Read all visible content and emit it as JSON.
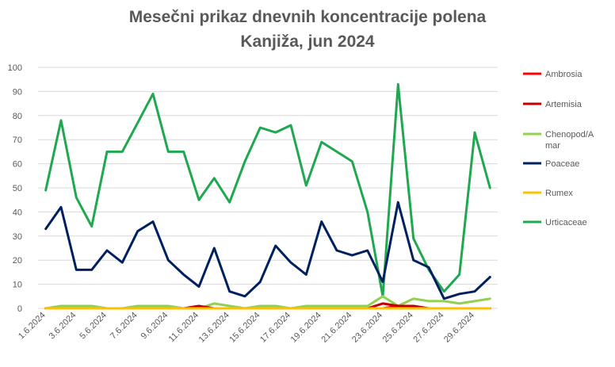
{
  "chart_data": {
    "type": "line",
    "title": "Mesečni prikaz dnevnih koncentracije polena",
    "subtitle": "Kanjiža, jun 2024",
    "xlabel": "",
    "ylabel": "",
    "ylim": [
      0,
      100
    ],
    "yticks": [
      0,
      10,
      20,
      30,
      40,
      50,
      60,
      70,
      80,
      90,
      100
    ],
    "grid": true,
    "legend_position": "right",
    "categories": [
      "1.6.2024",
      "2.6.2024",
      "3.6.2024",
      "4.6.2024",
      "5.6.2024",
      "6.6.2024",
      "7.6.2024",
      "8.6.2024",
      "9.6.2024",
      "10.6.2024",
      "11.6.2024",
      "12.6.2024",
      "13.6.2024",
      "14.6.2024",
      "15.6.2024",
      "16.6.2024",
      "17.6.2024",
      "18.6.2024",
      "19.6.2024",
      "20.6.2024",
      "21.6.2024",
      "22.6.2024",
      "23.6.2024",
      "24.6.2024",
      "25.6.2024",
      "26.6.2024",
      "27.6.2024",
      "28.6.2024",
      "29.6.2024",
      "30.6.2024"
    ],
    "xtick_labels": [
      "1.6.2024",
      "3.6.2024",
      "5.6.2024",
      "7.6.2024",
      "9.6.2024",
      "11.6.2024",
      "13.6.2024",
      "15.6.2024",
      "17.6.2024",
      "19.6.2024",
      "21.6.2024",
      "23.6.2024",
      "25.6.2024",
      "27.6.2024",
      "29.6.2024"
    ],
    "series": [
      {
        "name": "Ambrosia",
        "color": "#ff0000",
        "values": [
          0,
          0,
          0,
          0,
          0,
          0,
          0,
          0,
          0,
          0,
          0,
          0,
          0,
          0,
          0,
          0,
          0,
          0,
          0,
          0,
          0,
          0,
          0,
          1,
          0,
          0,
          0,
          0,
          0,
          0
        ]
      },
      {
        "name": "Artemisia",
        "color": "#c00000",
        "values": [
          0,
          0,
          0,
          0,
          0,
          0,
          0,
          0,
          0,
          0,
          1,
          0,
          0,
          0,
          0,
          0,
          0,
          0,
          0,
          0,
          0,
          0,
          2,
          1,
          1,
          0,
          0,
          0,
          0,
          0
        ]
      },
      {
        "name": "Chenopod/Amar",
        "color": "#92d050",
        "values": [
          0,
          1,
          1,
          1,
          0,
          0,
          1,
          1,
          1,
          0,
          0,
          2,
          1,
          0,
          1,
          1,
          0,
          1,
          1,
          1,
          1,
          1,
          5,
          1,
          4,
          3,
          3,
          2,
          3,
          4
        ]
      },
      {
        "name": "Poaceae",
        "color": "#002060",
        "values": [
          33,
          42,
          16,
          16,
          24,
          19,
          32,
          36,
          20,
          14,
          9,
          25,
          7,
          5,
          11,
          26,
          19,
          14,
          36,
          24,
          22,
          24,
          11,
          44,
          20,
          17,
          4,
          6,
          7,
          13
        ]
      },
      {
        "name": "Rumex",
        "color": "#ffc000",
        "values": [
          0,
          0,
          0,
          0,
          0,
          0,
          0,
          0,
          0,
          0,
          0,
          0,
          0,
          0,
          0,
          0,
          0,
          0,
          0,
          0,
          0,
          0,
          0,
          0,
          0,
          0,
          0,
          0,
          0,
          0
        ]
      },
      {
        "name": "Urticaceae",
        "color": "#1fa84f",
        "values": [
          49,
          78,
          46,
          34,
          65,
          65,
          77,
          89,
          65,
          65,
          45,
          54,
          44,
          61,
          75,
          73,
          76,
          51,
          69,
          65,
          61,
          40,
          5,
          93,
          29,
          16,
          7,
          14,
          73,
          50
        ]
      }
    ]
  },
  "legend": {
    "items": [
      {
        "label": "Ambrosia",
        "color": "#ff0000"
      },
      {
        "label": "Artemisia",
        "color": "#c00000"
      },
      {
        "label": "Chenopod/A",
        "label2": "mar",
        "color": "#92d050"
      },
      {
        "label": "Poaceae",
        "color": "#002060"
      },
      {
        "label": "Rumex",
        "color": "#ffc000"
      },
      {
        "label": "Urticaceae",
        "color": "#1fa84f"
      }
    ]
  }
}
